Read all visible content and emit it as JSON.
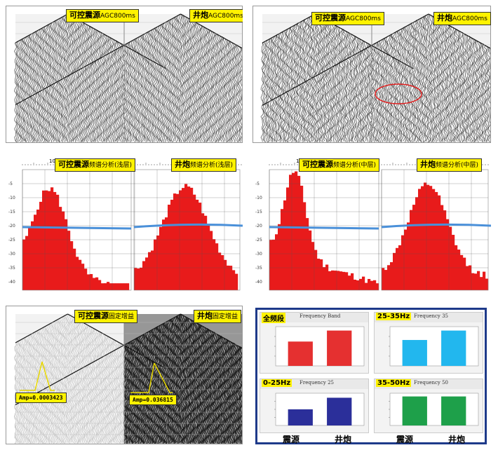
{
  "seismic": {
    "tl_left": {
      "name": "可控震源",
      "sub": "AGC800ms"
    },
    "tl_right": {
      "name": "井炮",
      "sub": "AGC800ms"
    },
    "tr_left": {
      "name": "可控震源",
      "sub": "AGC800ms"
    },
    "tr_right": {
      "name": "井炮",
      "sub": "AGC800ms"
    },
    "bl_left": {
      "name": "可控震源",
      "sub": "固定增益"
    },
    "bl_right": {
      "name": "井炮",
      "sub": "固定增益"
    },
    "amp_left": "Amp=0.0003423",
    "amp_right": "Amp=0.036815"
  },
  "spectra": {
    "ml_left": {
      "name": "可控震源",
      "sub": "频谱分析(浅层)"
    },
    "ml_right": {
      "name": "井炮",
      "sub": "频谱分析(浅层)"
    },
    "mr_left": {
      "name": "可控震源",
      "sub": "频谱分析(中层)"
    },
    "mr_right": {
      "name": "井炮",
      "sub": "频谱分析(中层)"
    },
    "tick_top": "10",
    "y_ticks": [
      "-5",
      "-10",
      "-15",
      "-20",
      "-25",
      "-30",
      "-35",
      "-40"
    ]
  },
  "chart_data": [
    {
      "type": "bar",
      "title": "Frequency Band",
      "band_label": "全频段",
      "categories": [
        "震源",
        "井炮"
      ],
      "values": [
        0.62,
        0.9
      ],
      "colors": [
        "#e53030",
        "#e53030"
      ]
    },
    {
      "type": "bar",
      "title": "Frequency 35",
      "band_label": "25-35Hz",
      "categories": [
        "震源",
        "井炮"
      ],
      "values": [
        0.66,
        0.9
      ],
      "colors": [
        "#22b7ee",
        "#22b7ee"
      ]
    },
    {
      "type": "bar",
      "title": "Frequency 25",
      "band_label": "0-25Hz",
      "categories": [
        "震源",
        "井炮"
      ],
      "values": [
        0.5,
        0.86
      ],
      "colors": [
        "#2b2f9a",
        "#2b2f9a"
      ]
    },
    {
      "type": "bar",
      "title": "Frequency 50",
      "band_label": "35-50Hz",
      "categories": [
        "震源",
        "井炮"
      ],
      "values": [
        0.9,
        0.9
      ],
      "colors": [
        "#1ea04a",
        "#1ea04a"
      ]
    }
  ],
  "bottom_labels": [
    "震源",
    "井炮",
    "震源",
    "井炮"
  ]
}
